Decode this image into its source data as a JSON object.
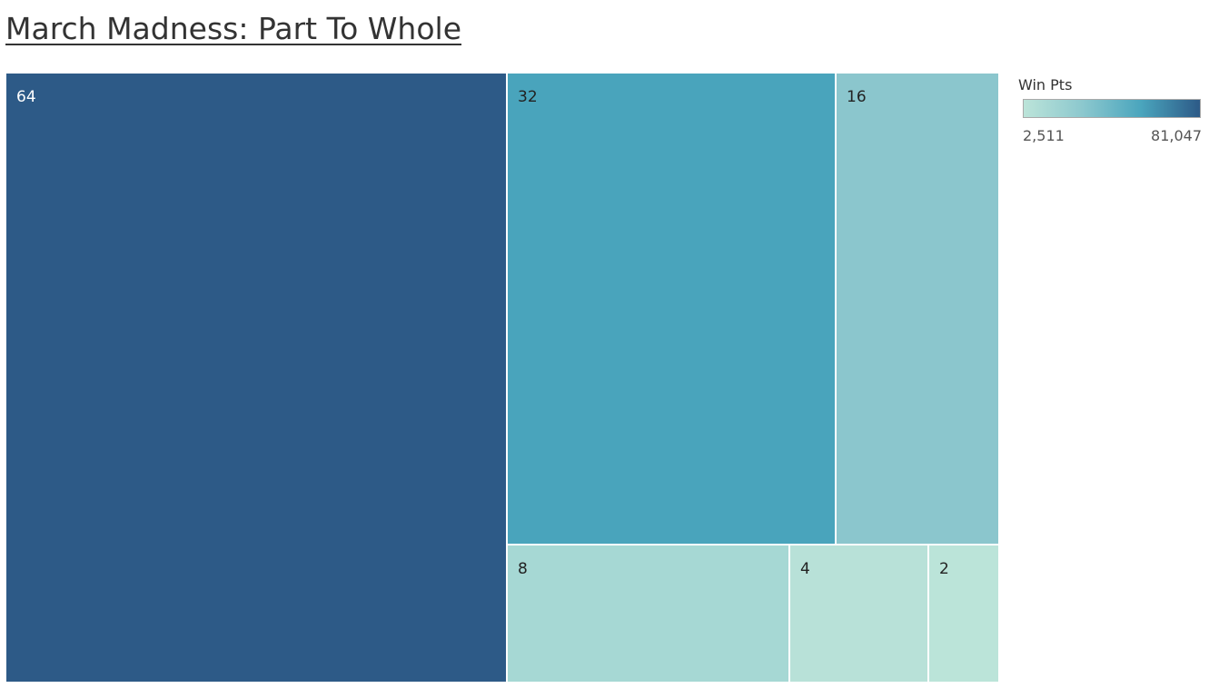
{
  "page": {
    "title": "March Madness: Part To Whole"
  },
  "legend": {
    "title": "Win Pts",
    "min_label": "2,511",
    "max_label": "81,047",
    "colors": [
      "#bce4d9",
      "#8cc8ce",
      "#4aa5bd",
      "#2d5a87"
    ]
  },
  "chart_data": {
    "type": "treemap",
    "title": "March Madness: Part To Whole",
    "color_measure": "Win Pts",
    "color_range": [
      2511,
      81047
    ],
    "items": [
      {
        "label": "64",
        "color": "#2d5a87",
        "label_color": "#ffffff"
      },
      {
        "label": "32",
        "color": "#49a4bc",
        "label_color": "#222222"
      },
      {
        "label": "16",
        "color": "#8bc6cd",
        "label_color": "#222222"
      },
      {
        "label": "8",
        "color": "#a6d8d4",
        "label_color": "#222222"
      },
      {
        "label": "4",
        "color": "#b8e1d8",
        "label_color": "#222222"
      },
      {
        "label": "2",
        "color": "#bbe4d9",
        "label_color": "#222222"
      }
    ]
  }
}
